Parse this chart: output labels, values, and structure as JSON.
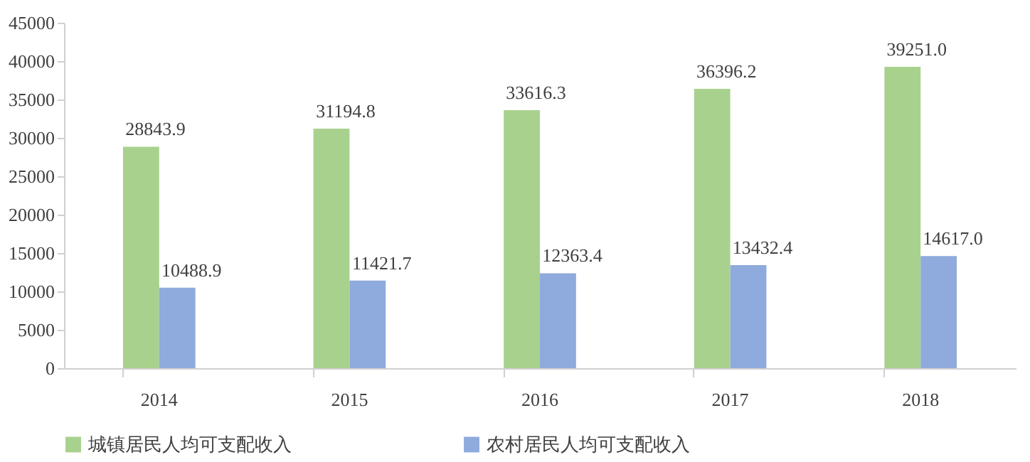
{
  "chart_data": {
    "type": "bar",
    "categories": [
      "2014",
      "2015",
      "2016",
      "2017",
      "2018"
    ],
    "series": [
      {
        "name": "城镇居民人均可支配收入",
        "color": "#a9d18e",
        "values": [
          28843.9,
          31194.8,
          33616.3,
          36396.2,
          39251.0
        ],
        "value_labels": [
          "28843.9",
          "31194.8",
          "33616.3",
          "36396.2",
          "39251.0"
        ]
      },
      {
        "name": "农村居民人均可支配收入",
        "color": "#8faadc",
        "values": [
          10488.9,
          11421.7,
          12363.4,
          13432.4,
          14617.0
        ],
        "value_labels": [
          "10488.9",
          "11421.7",
          "12363.4",
          "13432.4",
          "14617.0"
        ]
      }
    ],
    "ylim": [
      0,
      45000
    ],
    "yticks": [
      0,
      5000,
      10000,
      15000,
      20000,
      25000,
      30000,
      35000,
      40000,
      45000
    ],
    "grid": false,
    "legend": "bottom"
  }
}
